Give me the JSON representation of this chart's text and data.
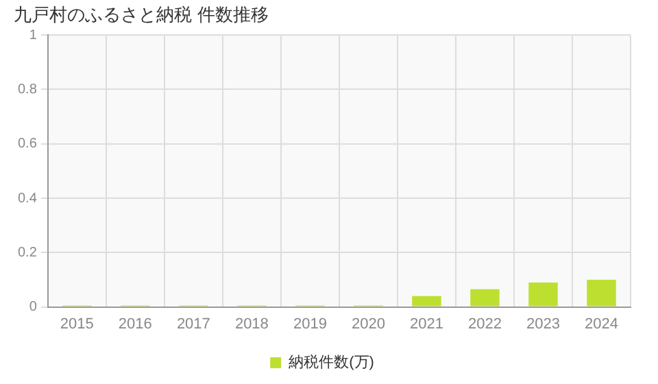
{
  "chart_data": {
    "type": "bar",
    "title": "九戸村のふるさと納税 件数推移",
    "categories": [
      "2015",
      "2016",
      "2017",
      "2018",
      "2019",
      "2020",
      "2021",
      "2022",
      "2023",
      "2024"
    ],
    "series": [
      {
        "name": "納税件数(万)",
        "color": "#bde030",
        "values": [
          0.005,
          0.005,
          0.005,
          0.005,
          0.005,
          0.005,
          0.04,
          0.065,
          0.09,
          0.1
        ]
      }
    ],
    "ylim": [
      0,
      1
    ],
    "yticks": [
      0,
      0.2,
      0.4,
      0.6,
      0.8,
      1
    ],
    "grid": true,
    "legend": "bottom"
  }
}
